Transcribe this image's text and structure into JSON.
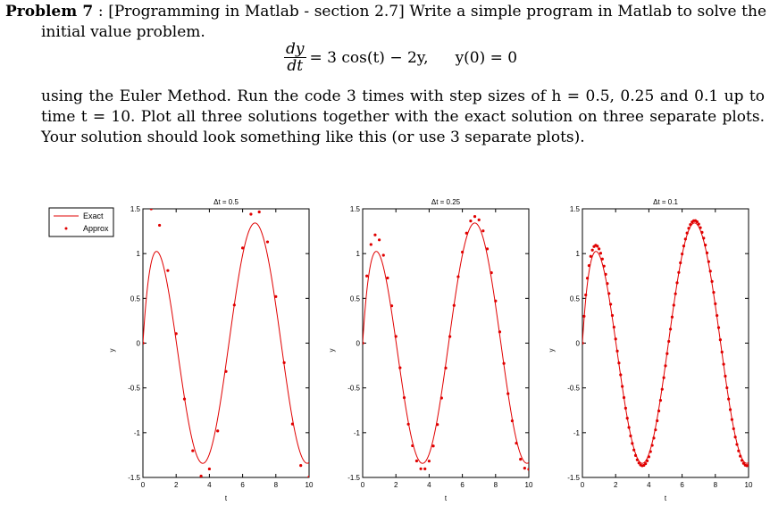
{
  "problem": {
    "label": "Problem 7",
    "colon": ":",
    "bracket_text": "[Programming in Matlab - section 2.7]",
    "intro": "Write a simple program in Matlab to solve the",
    "intro_cont": "initial value problem.",
    "eq_num": "dy",
    "eq_den": "dt",
    "eq_rhs": "= 3 cos(t) − 2y,",
    "eq_ic": "y(0) = 0",
    "para_line1": "using the Euler Method. Run the code 3 times with step sizes of h = 0.5, 0.25 and 0.1 up to",
    "para_line2": "time t = 10. Plot all three solutions together with the exact solution on three separate plots.",
    "para_line3": "Your solution should look something like this (or use 3 separate plots)."
  },
  "legend": {
    "exact": "Exact",
    "approx": "Approx"
  },
  "colors": {
    "curve": "#e00000",
    "axis": "#000000"
  },
  "chart_data": [
    {
      "type": "line",
      "title": "Δt = 0.5",
      "xlabel": "t",
      "ylabel": "y",
      "xlim": [
        0,
        10
      ],
      "ylim": [
        -1.5,
        1.5
      ],
      "xticks": [
        "0",
        "2",
        "4",
        "6",
        "8",
        "10"
      ],
      "yticks": [
        "-1.5",
        "-1",
        "-0.5",
        "0",
        "0.5",
        "1",
        "1.5"
      ],
      "step": 0.5,
      "series": [
        {
          "name": "Exact",
          "function": "y = 1.2cos(t) + 0.6sin(t) - 1.2e^(-2t)",
          "x_range": [
            0,
            10
          ]
        },
        {
          "name": "Approx",
          "method": "Euler",
          "h": 0.5,
          "x": [
            0,
            0.5,
            1,
            1.5,
            2,
            2.5,
            3,
            3.5,
            4,
            4.5,
            5,
            5.5,
            6,
            6.5,
            7,
            7.5,
            8,
            8.5,
            9,
            9.5,
            10
          ],
          "y": [
            0,
            1.5,
            1.316,
            0.81,
            0.1061,
            -0.6212,
            -1.2018,
            -1.4849,
            -1.3806,
            -0.9805,
            -0.2976,
            0.4255,
            1.0434,
            1.4289,
            1.5049,
            1.2509,
            0.7241,
            0.0342,
            -0.6637,
            -1.1763,
            -1.3971
          ]
        }
      ]
    },
    {
      "type": "line",
      "title": "Δt = 0.25",
      "xlabel": "t",
      "ylabel": "y",
      "xlim": [
        0,
        10
      ],
      "ylim": [
        -1.5,
        1.5
      ],
      "xticks": [
        "0",
        "2",
        "4",
        "6",
        "8",
        "10"
      ],
      "yticks": [
        "-1.5",
        "-1",
        "-0.5",
        "0",
        "0.5",
        "1",
        "1.5"
      ],
      "step": 0.25,
      "series": [
        {
          "name": "Exact",
          "function": "y = 1.2cos(t) + 0.6sin(t) - 1.2e^(-2t)",
          "x_range": [
            0,
            10
          ]
        },
        {
          "name": "Approx",
          "method": "Euler",
          "h": 0.25
        }
      ]
    },
    {
      "type": "line",
      "title": "Δt = 0.1",
      "xlabel": "t",
      "ylabel": "y",
      "xlim": [
        0,
        10
      ],
      "ylim": [
        -1.5,
        1.5
      ],
      "xticks": [
        "0",
        "2",
        "4",
        "6",
        "8",
        "10"
      ],
      "yticks": [
        "-1.5",
        "-1",
        "-0.5",
        "0",
        "0.5",
        "1",
        "1.5"
      ],
      "step": 0.1,
      "series": [
        {
          "name": "Exact",
          "function": "y = 1.2cos(t) + 0.6sin(t) - 1.2e^(-2t)",
          "x_range": [
            0,
            10
          ]
        },
        {
          "name": "Approx",
          "method": "Euler",
          "h": 0.1
        }
      ]
    }
  ]
}
